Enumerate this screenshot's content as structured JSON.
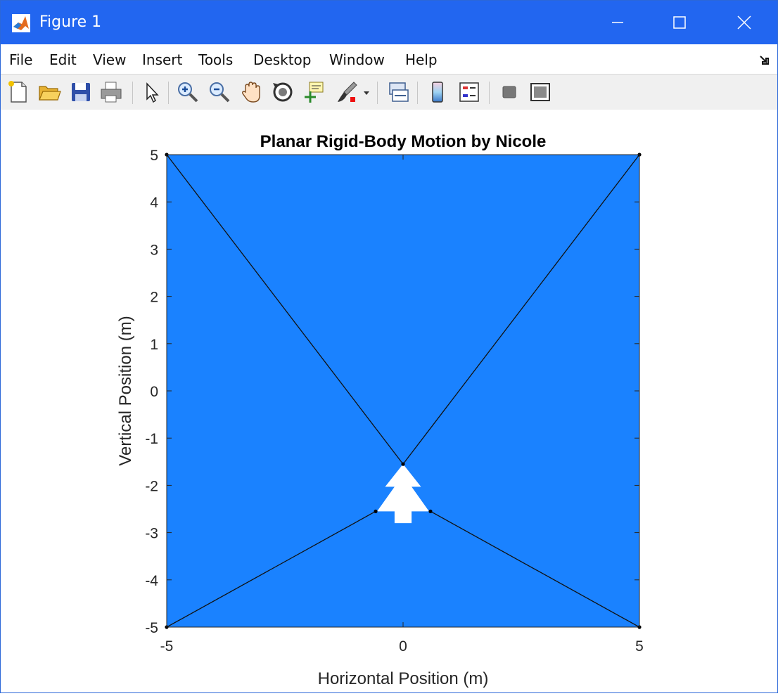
{
  "window": {
    "title": "Figure 1"
  },
  "menu": [
    "File",
    "Edit",
    "View",
    "Insert",
    "Tools",
    "Desktop",
    "Window",
    "Help"
  ],
  "toolbar": [
    "new-figure",
    "open-file",
    "save-figure",
    "print-figure",
    "edit-plot",
    "zoom-in",
    "zoom-out",
    "pan",
    "rotate-3d",
    "data-cursor",
    "brush",
    "link-plot",
    "insert-colorbar",
    "insert-legend",
    "hide-plot-tools",
    "show-plot-tools"
  ],
  "colors": {
    "titlebar": "#2266f0",
    "fill": "#1a82ff",
    "tree": "#ffffff"
  },
  "chart_data": {
    "type": "line",
    "title": "Planar Rigid-Body Motion by Nicole",
    "xlabel": "Horizontal Position (m)",
    "ylabel": "Vertical Position (m)",
    "xlim": [
      -5,
      5
    ],
    "ylim": [
      -5,
      5
    ],
    "xticks": [
      "-5",
      "0",
      "5"
    ],
    "yticks": [
      "5",
      "4",
      "3",
      "2",
      "1",
      "0",
      "-1",
      "-2",
      "-3",
      "-4",
      "-5"
    ],
    "grid": false,
    "background_fill": "#1a82ff",
    "lines": [
      {
        "x": [
          -5,
          0
        ],
        "y": [
          5,
          -1.55
        ]
      },
      {
        "x": [
          5,
          0
        ],
        "y": [
          5,
          -1.55
        ]
      },
      {
        "x": [
          -5,
          -0.58
        ],
        "y": [
          -5,
          -2.55
        ]
      },
      {
        "x": [
          5,
          0.58
        ],
        "y": [
          -5,
          -2.55
        ]
      }
    ],
    "points": [
      {
        "x": -5,
        "y": 5
      },
      {
        "x": 5,
        "y": 5
      },
      {
        "x": -5,
        "y": -5
      },
      {
        "x": 5,
        "y": -5
      },
      {
        "x": 0,
        "y": -1.55
      },
      {
        "x": -0.58,
        "y": -2.55
      },
      {
        "x": 0.58,
        "y": -2.55
      }
    ],
    "shape": {
      "x": [
        0,
        0.38,
        0.18,
        0.55,
        0.18,
        0.18,
        -0.18,
        -0.18,
        -0.55,
        -0.18,
        -0.38,
        0
      ],
      "y": [
        -1.55,
        -2.03,
        -2.03,
        -2.55,
        -2.55,
        -2.8,
        -2.8,
        -2.55,
        -2.55,
        -2.03,
        -2.03,
        -1.55
      ]
    }
  }
}
